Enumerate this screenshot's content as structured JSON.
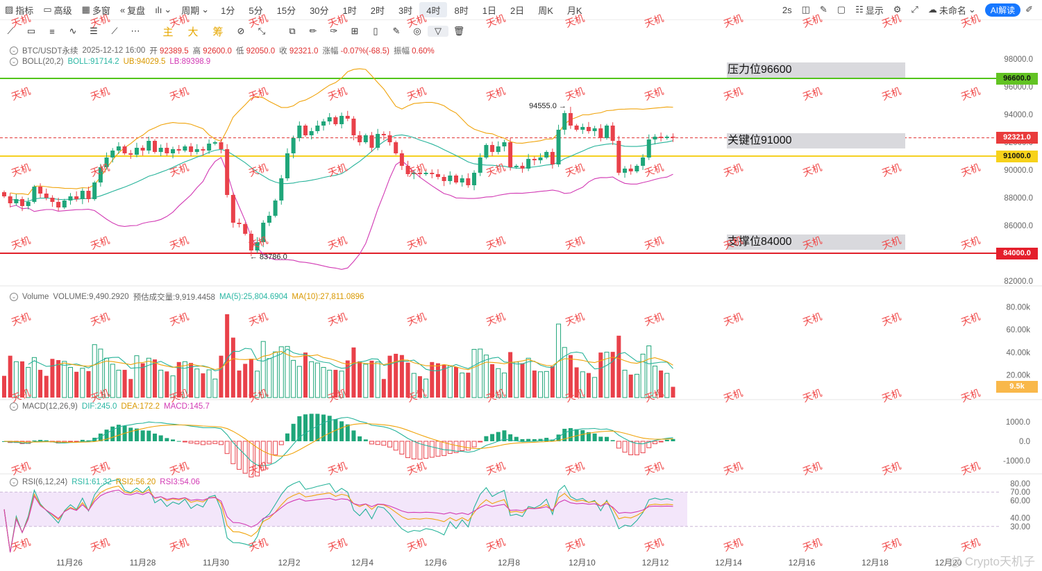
{
  "toolbar": {
    "indicators": "指标",
    "advanced": "高级",
    "multi_window": "多窗",
    "replay": "复盘",
    "chart_type_icon": "candlestick-icon",
    "period_menu": "周期",
    "periods": [
      "1分",
      "5分",
      "15分",
      "30分",
      "1时",
      "2时",
      "3时",
      "4时",
      "8时",
      "1日",
      "2日",
      "周K",
      "月K"
    ],
    "active_period": "4时",
    "refresh": "2s",
    "display": "显示",
    "layout_name": "未命名",
    "ai_button": "AI解读"
  },
  "drawbar": {
    "main_label": "主",
    "big_label": "大",
    "chips_label": "筹"
  },
  "legend_main": {
    "symbol": "BTC/USDT永续",
    "datetime": "2025-12-12 16:00",
    "open_label": "开",
    "open": "92389.5",
    "high_label": "高",
    "high": "92600.0",
    "low_label": "低",
    "low": "92050.0",
    "close_label": "收",
    "close": "92321.0",
    "change_label": "涨幅",
    "change": "-0.07%(-68.5)",
    "amp_label": "振幅",
    "amplitude": "0.60%"
  },
  "legend_boll": {
    "name": "BOLL(20,2)",
    "mid": "BOLL:91714.2",
    "ub": "UB:94029.5",
    "lb": "LB:89398.9"
  },
  "legend_volume": {
    "name": "Volume",
    "volume": "VOLUME:9,490.2920",
    "est": "预估成交量:9,919.4458",
    "ma5": "MA(5):25,804.6904",
    "ma10": "MA(10):27,811.0896"
  },
  "legend_macd": {
    "name": "MACD(12,26,9)",
    "dif": "DIF:245.0",
    "dea": "DEA:172.2",
    "macd": "MACD:145.7"
  },
  "legend_rsi": {
    "name": "RSI(6,12,24)",
    "rsi1": "RSI1:61.32",
    "rsi2": "RSI2:56.20",
    "rsi3": "RSI3:54.06"
  },
  "annotations": {
    "resistance": "压力位96600",
    "key": "关键位91000",
    "support": "支撑位84000"
  },
  "price_tags": {
    "resistance": "96600.0",
    "current": "92321.0",
    "key": "91000.0",
    "support": "84000.0",
    "volume_now": "9.5k"
  },
  "watermark": "天机",
  "credit": "@ Crypto天机子",
  "chart_data": {
    "type": "candlestick",
    "interval": "4h",
    "x_ticks": [
      "11月26",
      "11月28",
      "11月30",
      "12月2",
      "12月4",
      "12月6",
      "12月8",
      "12月10",
      "12月12",
      "12月14",
      "12月16",
      "12月18",
      "12月20"
    ],
    "price_axis": {
      "ticks": [
        82000,
        84000,
        86000,
        88000,
        90000,
        92000,
        94000,
        96000,
        98000
      ],
      "range": [
        81000,
        99000
      ]
    },
    "horizontal_levels": [
      {
        "label": "压力位96600",
        "value": 96600,
        "color": "#52c41a"
      },
      {
        "label": "关键位91000",
        "value": 91000,
        "color": "#f5d020"
      },
      {
        "label": "支撑位84000",
        "value": 84000,
        "color": "#e0202a"
      },
      {
        "label": "current",
        "value": 92321,
        "color": "#e03131"
      }
    ],
    "point_labels": [
      {
        "text": "94555.0",
        "value": 94555
      },
      {
        "text": "83786.0",
        "value": 83786
      }
    ],
    "closes": [
      88100,
      87600,
      87900,
      87400,
      87700,
      88800,
      88300,
      88000,
      87700,
      87300,
      87800,
      88100,
      87900,
      88500,
      87900,
      89100,
      90200,
      90900,
      91400,
      91700,
      91200,
      91100,
      91600,
      91400,
      92100,
      91300,
      91600,
      91200,
      91500,
      91400,
      91700,
      91300,
      91500,
      91400,
      91900,
      92000,
      91500,
      88200,
      86200,
      86100,
      85400,
      84200,
      84800,
      86200,
      86700,
      87800,
      89400,
      91200,
      92300,
      93200,
      92500,
      92800,
      93200,
      93500,
      93800,
      93300,
      93900,
      93700,
      92500,
      92000,
      92500,
      91600,
      92600,
      92500,
      92000,
      91200,
      90300,
      89700,
      89800,
      89700,
      89800,
      89700,
      89500,
      89200,
      89600,
      89100,
      89400,
      88900,
      89800,
      90900,
      91800,
      91300,
      91700,
      92000,
      90200,
      90300,
      90100,
      90800,
      90700,
      90900,
      91300,
      90400,
      92900,
      94100,
      93200,
      92900,
      93100,
      92800,
      93000,
      92300,
      93200,
      92100,
      89800,
      90100,
      89900,
      90300,
      90900,
      92200,
      92400,
      92300,
      92400,
      92321
    ],
    "boll": {
      "ub_last": 94029.5,
      "mid_last": 91714.2,
      "lb_last": 89398.9
    },
    "volume_axis": {
      "ticks": [
        "20.00k",
        "40.00k",
        "60.00k",
        "80.00k"
      ],
      "last": 9490.292
    },
    "macd_axis": {
      "ticks": [
        "-1000.0",
        "0.0",
        "1000.0"
      ],
      "dif_last": 245.0,
      "dea_last": 172.2,
      "hist_last": 145.7
    },
    "rsi_axis": {
      "ticks": [
        "30.00",
        "40.00",
        "60.00",
        "70.00",
        "80.00"
      ],
      "rsi1_last": 61.32,
      "rsi2_last": 56.2,
      "rsi3_last": 54.06
    }
  }
}
